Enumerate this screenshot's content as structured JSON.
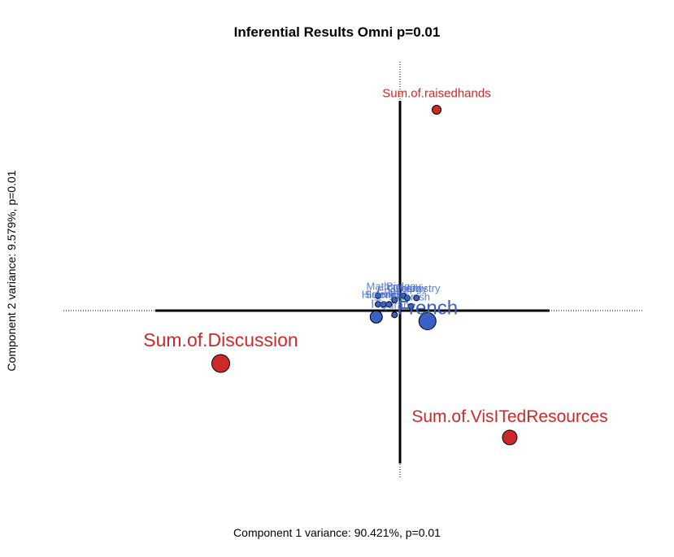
{
  "chart_data": {
    "type": "scatter",
    "title": "Inferential Results Omni p=0.01",
    "xlabel": "Component 1 variance: 90.421%, p=0.01",
    "ylabel": "Component 2 variance: 9.579%, p=0.01",
    "xlim": [
      -1.15,
      1.15
    ],
    "ylim": [
      -0.75,
      1.1
    ],
    "grid": false,
    "legend": "none",
    "colors": {
      "columns": "#cc2a2a",
      "rows": "#3a62c4"
    },
    "series": [
      {
        "group": "columns",
        "points": [
          {
            "label": "Sum.of.raisedhands",
            "x": 0.2,
            "y": 0.95,
            "size": 1
          },
          {
            "label": "Sum.of.Discussion",
            "x": -0.98,
            "y": -0.25,
            "size": 3
          },
          {
            "label": "Sum.of.VisITedResources",
            "x": 0.6,
            "y": -0.6,
            "size": 2
          }
        ]
      },
      {
        "group": "rows",
        "points": [
          {
            "label": "French",
            "x": 0.15,
            "y": -0.05,
            "size": 3
          },
          {
            "label": "English",
            "x": -0.03,
            "y": 0.05,
            "size": 1
          },
          {
            "label": "Biology",
            "x": 0.02,
            "y": 0.07,
            "size": 1
          },
          {
            "label": "Chemistry",
            "x": 0.09,
            "y": 0.06,
            "size": 1
          },
          {
            "label": "Math",
            "x": -0.12,
            "y": 0.07,
            "size": 1
          },
          {
            "label": "Geology",
            "x": 0.04,
            "y": 0.06,
            "size": 1
          },
          {
            "label": "Spanish",
            "x": 0.06,
            "y": 0.02,
            "size": 1
          },
          {
            "label": "History",
            "x": -0.12,
            "y": 0.03,
            "size": 1
          },
          {
            "label": "Science",
            "x": -0.09,
            "y": 0.03,
            "size": 1
          },
          {
            "label": "Arabic",
            "x": -0.06,
            "y": 0.03,
            "size": 1
          },
          {
            "label": "IT",
            "x": -0.13,
            "y": -0.03,
            "size": 2
          },
          {
            "label": "Quran",
            "x": -0.03,
            "y": -0.02,
            "size": 1
          }
        ]
      }
    ]
  }
}
